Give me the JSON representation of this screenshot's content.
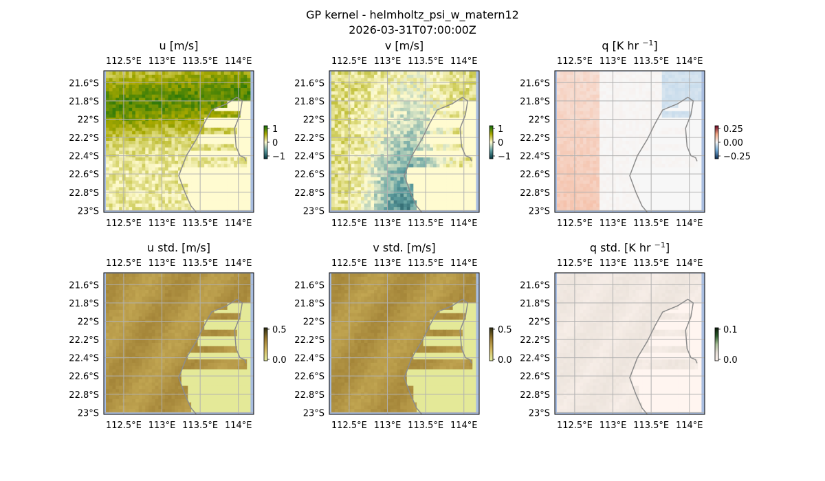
{
  "figure": {
    "title_line1": "GP kernel - helmholtz_psi_w_matern12",
    "title_line2": "2026-03-31T07:00:00Z"
  },
  "chart_data": [
    {
      "type": "heatmap",
      "title": "u [m/s]",
      "title_sup": "",
      "lon_ticks": [
        "112.5°E",
        "113°E",
        "113.5°E",
        "114°E"
      ],
      "lat_ticks": [
        "21.6°S",
        "21.8°S",
        "22°S",
        "22.2°S",
        "22.4°S",
        "22.6°S",
        "22.8°S",
        "23°S"
      ],
      "colorbar": {
        "ticks": [
          "1",
          "0",
          "−1"
        ],
        "range": [
          -1.2,
          1.2
        ],
        "colors": [
          "#01343f",
          "#5f9ea0",
          "#fffbd0",
          "#a9a900",
          "#0b6b0b"
        ]
      },
      "field": "u"
    },
    {
      "type": "heatmap",
      "title": "v [m/s]",
      "title_sup": "",
      "lon_ticks": [
        "112.5°E",
        "113°E",
        "113.5°E",
        "114°E"
      ],
      "lat_ticks": [
        "21.6°S",
        "21.8°S",
        "22°S",
        "22.2°S",
        "22.4°S",
        "22.6°S",
        "22.8°S",
        "23°S"
      ],
      "colorbar": {
        "ticks": [
          "1",
          "0",
          "−1"
        ],
        "range": [
          -1.2,
          1.2
        ],
        "colors": [
          "#01343f",
          "#5f9ea0",
          "#fffbd0",
          "#a9a900",
          "#0b6b0b"
        ]
      },
      "field": "v"
    },
    {
      "type": "heatmap",
      "title": "q [K hr ",
      "title_sup": "−1",
      "title_end": "]",
      "lon_ticks": [
        "112.5°E",
        "113°E",
        "113.5°E",
        "114°E"
      ],
      "lat_ticks": [
        "21.6°S",
        "21.8°S",
        "22°S",
        "22.2°S",
        "22.4°S",
        "22.6°S",
        "22.8°S",
        "23°S"
      ],
      "colorbar": {
        "ticks": [
          "0.25",
          "0.00",
          "−0.25"
        ],
        "range": [
          -0.35,
          0.35
        ],
        "colors": [
          "#0a2a50",
          "#6fa8d6",
          "#f7f7f7",
          "#f4a582",
          "#67001f"
        ]
      },
      "field": "q"
    },
    {
      "type": "heatmap",
      "title": "u std. [m/s]",
      "title_sup": "",
      "lon_ticks": [
        "112.5°E",
        "113°E",
        "113.5°E",
        "114°E"
      ],
      "lat_ticks": [
        "21.6°S",
        "21.8°S",
        "22°S",
        "22.2°S",
        "22.4°S",
        "22.6°S",
        "22.8°S",
        "23°S"
      ],
      "colorbar": {
        "ticks": [
          "0.5",
          "0.0"
        ],
        "range": [
          0,
          0.5
        ],
        "colors": [
          "#e6f0a0",
          "#d2b860",
          "#9a7a30",
          "#2a2a10"
        ]
      },
      "field": "us"
    },
    {
      "type": "heatmap",
      "title": "v std. [m/s]",
      "title_sup": "",
      "lon_ticks": [
        "112.5°E",
        "113°E",
        "113.5°E",
        "114°E"
      ],
      "lat_ticks": [
        "21.6°S",
        "21.8°S",
        "22°S",
        "22.2°S",
        "22.4°S",
        "22.6°S",
        "22.8°S",
        "23°S"
      ],
      "colorbar": {
        "ticks": [
          "0.5",
          "0.0"
        ],
        "range": [
          0,
          0.5
        ],
        "colors": [
          "#e6f0a0",
          "#d2b860",
          "#9a7a30",
          "#2a2a10"
        ]
      },
      "field": "vs"
    },
    {
      "type": "heatmap",
      "title": "q std. [K hr ",
      "title_sup": "−1",
      "title_end": "]",
      "lon_ticks": [
        "112.5°E",
        "113°E",
        "113.5°E",
        "114°E"
      ],
      "lat_ticks": [
        "21.6°S",
        "21.8°S",
        "22°S",
        "22.2°S",
        "22.4°S",
        "22.6°S",
        "22.8°S",
        "23°S"
      ],
      "colorbar": {
        "ticks": [
          "0.1",
          "0.0"
        ],
        "range": [
          0,
          0.12
        ],
        "colors": [
          "#fff5f0",
          "#e8e0d8",
          "#a8c098",
          "#2a5a2a",
          "#0a1a0a"
        ]
      },
      "field": "qs"
    }
  ],
  "colors": {
    "ocean_edge": "#a8bde0",
    "coast": "#8c8c8c",
    "grid": "#b0b0b0"
  }
}
